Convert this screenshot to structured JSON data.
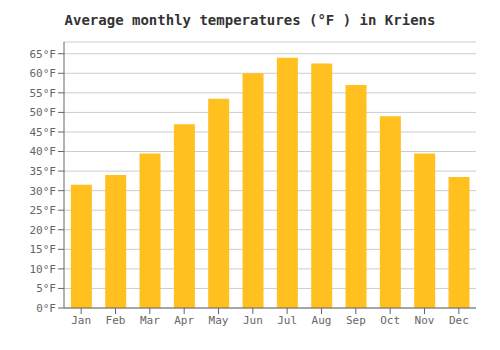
{
  "chart_data": {
    "type": "bar",
    "title": "Average monthly temperatures (°F ) in Kriens",
    "categories": [
      "Jan",
      "Feb",
      "Mar",
      "Apr",
      "May",
      "Jun",
      "Jul",
      "Aug",
      "Sep",
      "Oct",
      "Nov",
      "Dec"
    ],
    "values": [
      31.5,
      34.0,
      39.5,
      47.0,
      53.5,
      60.0,
      64.0,
      62.5,
      57.0,
      49.0,
      39.5,
      33.5
    ],
    "color": "#FFC020",
    "ylim": [
      0,
      68
    ],
    "yticks": [
      {
        "value": 0,
        "label": "0°F"
      },
      {
        "value": 5,
        "label": "5°F"
      },
      {
        "value": 10,
        "label": "10°F"
      },
      {
        "value": 15,
        "label": "15°F"
      },
      {
        "value": 20,
        "label": "20°F"
      },
      {
        "value": 25,
        "label": "25°F"
      },
      {
        "value": 30,
        "label": "30°F"
      },
      {
        "value": 35,
        "label": "35°F"
      },
      {
        "value": 40,
        "label": "40°F"
      },
      {
        "value": 45,
        "label": "45°F"
      },
      {
        "value": 50,
        "label": "50°F"
      },
      {
        "value": 55,
        "label": "55°F"
      },
      {
        "value": 60,
        "label": "60°F"
      },
      {
        "value": 65,
        "label": "65°F"
      }
    ],
    "grid": true
  }
}
